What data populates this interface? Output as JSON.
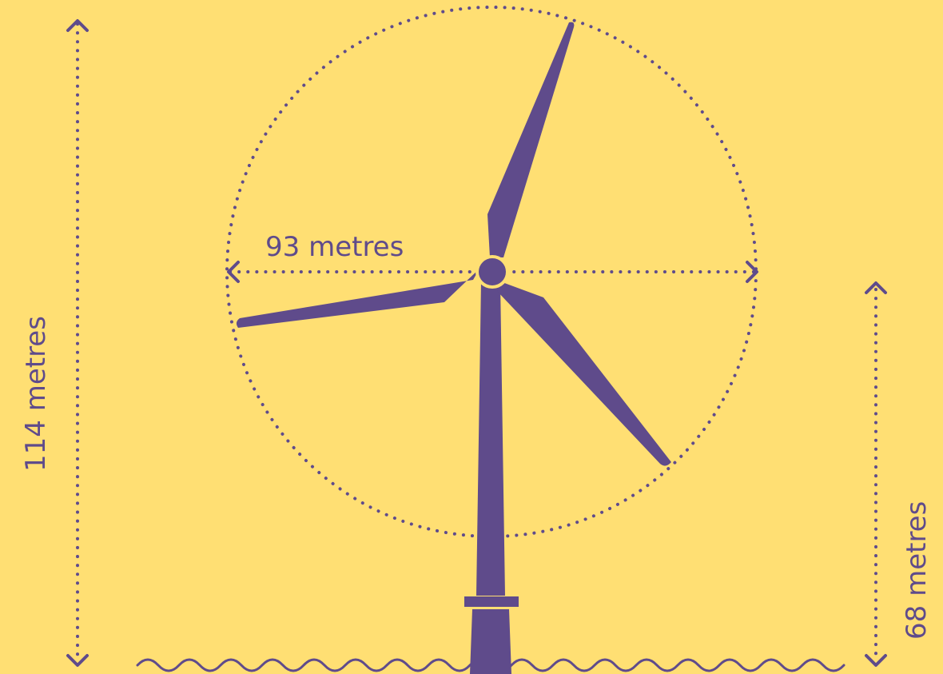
{
  "colors": {
    "background": "#FFDF73",
    "turbine": "#5F4B8B"
  },
  "labels": {
    "rotor_diameter": "93 metres",
    "tip_height": "114 metres",
    "hub_height": "68 metres"
  }
}
